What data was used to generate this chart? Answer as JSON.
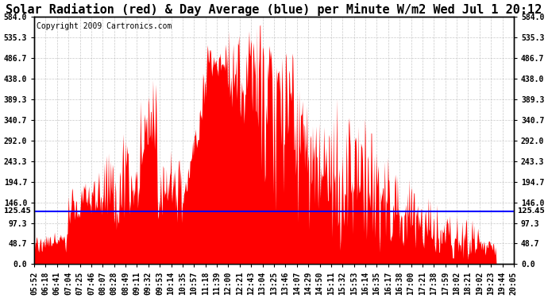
{
  "title": "Solar Radiation (red) & Day Average (blue) per Minute W/m2 Wed Jul 1 20:12",
  "copyright": "Copyright 2009 Cartronics.com",
  "y_ticks": [
    0.0,
    48.7,
    97.3,
    146.0,
    194.7,
    243.3,
    292.0,
    340.7,
    389.3,
    438.0,
    486.7,
    535.3,
    584.0
  ],
  "y_max": 584.0,
  "y_min": 0.0,
  "day_average": 125.45,
  "bg_color": "#ffffff",
  "fill_color": "#ff0000",
  "line_color": "#0000ff",
  "grid_color": "#bbbbbb",
  "x_labels": [
    "05:52",
    "06:18",
    "06:41",
    "07:04",
    "07:25",
    "07:46",
    "08:07",
    "08:28",
    "08:49",
    "09:11",
    "09:32",
    "09:53",
    "10:14",
    "10:35",
    "10:57",
    "11:18",
    "11:39",
    "12:00",
    "12:21",
    "12:43",
    "13:04",
    "13:25",
    "13:46",
    "14:07",
    "14:29",
    "14:50",
    "15:11",
    "15:32",
    "15:53",
    "16:14",
    "16:35",
    "16:17",
    "16:38",
    "17:00",
    "17:21",
    "17:38",
    "17:59",
    "18:02",
    "18:21",
    "19:02",
    "19:23",
    "19:44",
    "20:05"
  ],
  "title_fontsize": 11,
  "copyright_fontsize": 7,
  "tick_fontsize": 7
}
